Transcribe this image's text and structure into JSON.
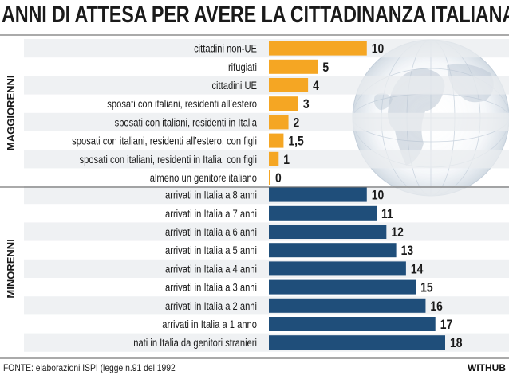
{
  "title": "ANNI DI ATTESA PER AVERE LA CITTADINANZA ITALIANA",
  "source": "FONTE: elaborazioni ISPI (legge n.91 del 1992",
  "brand": "WITHUB",
  "colors": {
    "orange": "#f5a623",
    "blue": "#1f4e7a",
    "band": "#e9ecef",
    "text": "#1a1a1a"
  },
  "chart_data": {
    "type": "bar",
    "orientation": "horizontal",
    "title": "ANNI DI ATTESA PER AVERE LA CITTADINANZA ITALIANA",
    "xlabel": "",
    "ylabel": "",
    "xlim": [
      0,
      18
    ],
    "groups": [
      {
        "name": "MAGGIORENNI",
        "color": "#f5a623",
        "categories": [
          "cittadini non-UE",
          "rifugiati",
          "cittadini UE",
          "sposati con italiani, residenti all’estero",
          "sposati con italiani, residenti in Italia",
          "sposati con italiani, residenti all’estero, con figli",
          "sposati con italiani, residenti in Italia, con figli",
          "almeno un genitore italiano"
        ],
        "values": [
          10,
          5,
          4,
          3,
          2,
          1.5,
          1,
          0
        ],
        "value_labels": [
          "10",
          "5",
          "4",
          "3",
          "2",
          "1,5",
          "1",
          "0"
        ]
      },
      {
        "name": "MINORENNI",
        "color": "#1f4e7a",
        "categories": [
          "arrivati in Italia a 8 anni",
          "arrivati in Italia a 7 anni",
          "arrivati in Italia a 6 anni",
          "arrivati in Italia a 5 anni",
          "arrivati in Italia a 4 anni",
          "arrivati in Italia a 3 anni",
          "arrivati in Italia a 2 anni",
          "arrivati in Italia a 1 anno",
          "nati in Italia da genitori stranieri"
        ],
        "values": [
          10,
          11,
          12,
          13,
          14,
          15,
          16,
          17,
          18
        ],
        "value_labels": [
          "10",
          "11",
          "12",
          "13",
          "14",
          "15",
          "16",
          "17",
          "18"
        ]
      }
    ]
  }
}
